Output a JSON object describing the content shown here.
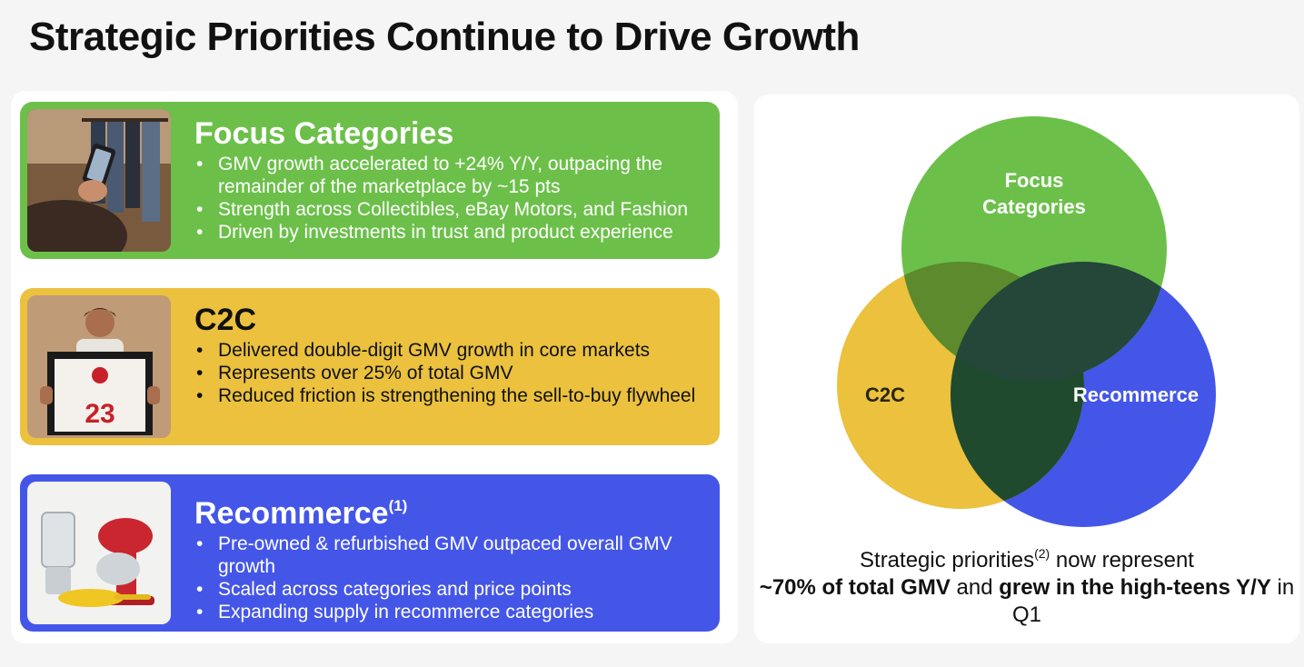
{
  "title": "Strategic Priorities Continue to Drive Growth",
  "colors": {
    "green": "#6cc04a",
    "yellow": "#ebc13e",
    "blue": "#4456e8",
    "overlap": "#24473a"
  },
  "cards": [
    {
      "title": "Focus Categories",
      "superscript": "",
      "bullets": [
        "GMV growth accelerated to +24% Y/Y, outpacing the remainder of the marketplace by ~15 pts",
        "Strength across Collectibles, eBay Motors, and Fashion",
        "Driven by investments in trust and product experience"
      ]
    },
    {
      "title": "C2C",
      "superscript": "",
      "jersey_number": "23",
      "bullets": [
        "Delivered double-digit GMV growth in core markets",
        "Represents over 25% of total GMV",
        "Reduced friction is strengthening the sell-to-buy flywheel"
      ]
    },
    {
      "title": "Recommerce",
      "superscript": "(1)",
      "bullets": [
        "Pre-owned & refurbished GMV outpaced overall GMV growth",
        "Scaled across categories and price points",
        "Expanding supply in recommerce categories"
      ]
    }
  ],
  "venn": {
    "focus_line1": "Focus",
    "focus_line2": "Categories",
    "c2c": "C2C",
    "recommerce": "Recommerce"
  },
  "summary": {
    "part1": "Strategic priorities",
    "sup": "(2)",
    "part2": " now represent",
    "bold1": "~70% of total GMV",
    "part3": " and ",
    "bold2": "grew in the high-teens Y/Y",
    "part4": " in Q1"
  }
}
